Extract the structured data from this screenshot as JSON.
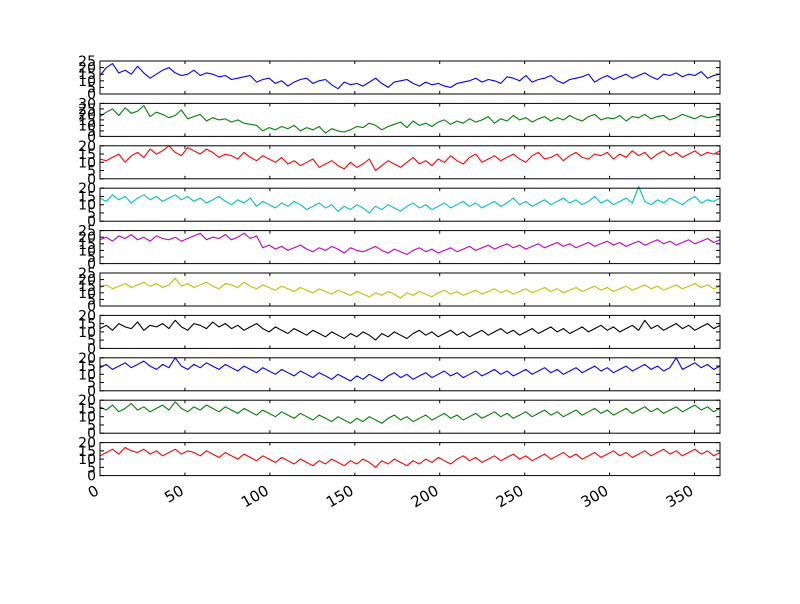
{
  "chart_data": {
    "type": "line",
    "layout": "stacked-subplots",
    "x_range": [
      0,
      365
    ],
    "x_ticks": [
      0,
      50,
      100,
      150,
      200,
      250,
      300,
      350
    ],
    "x_tick_rotation_deg": 30,
    "grid": false,
    "legend": "none",
    "panels": [
      {
        "color": "#0000ff",
        "ylim": [
          0,
          25
        ],
        "yticks": [
          0,
          5,
          10,
          15,
          20,
          25
        ],
        "values": [
          14,
          20,
          23,
          16,
          18,
          15,
          21,
          16,
          12,
          15,
          18,
          20,
          16,
          14,
          15,
          18,
          14,
          16,
          15,
          13,
          14,
          11,
          12,
          13,
          14,
          9,
          11,
          12,
          8,
          10,
          6,
          9,
          11,
          12,
          8,
          10,
          11,
          7,
          4,
          9,
          7,
          8,
          6,
          9,
          12,
          8,
          5,
          9,
          10,
          11,
          8,
          6,
          9,
          7,
          8,
          6,
          5,
          8,
          9,
          10,
          12,
          9,
          11,
          10,
          8,
          13,
          12,
          10,
          14,
          9,
          11,
          12,
          14,
          10,
          8,
          11,
          12,
          13,
          15,
          9,
          12,
          14,
          11,
          13,
          15,
          12,
          14,
          16,
          13,
          11,
          15,
          14,
          16,
          13,
          15,
          14,
          17,
          12,
          14,
          15
        ]
      },
      {
        "color": "#008000",
        "ylim": [
          0,
          30
        ],
        "yticks": [
          0,
          5,
          10,
          15,
          20,
          25,
          30
        ],
        "values": [
          18,
          22,
          25,
          19,
          26,
          21,
          23,
          28,
          18,
          22,
          20,
          17,
          19,
          24,
          16,
          18,
          20,
          14,
          17,
          15,
          16,
          13,
          15,
          12,
          11,
          10,
          5,
          8,
          6,
          9,
          7,
          10,
          5,
          8,
          6,
          9,
          3,
          7,
          5,
          4,
          6,
          9,
          8,
          12,
          10,
          6,
          9,
          11,
          13,
          8,
          14,
          10,
          12,
          9,
          13,
          15,
          11,
          14,
          12,
          16,
          13,
          15,
          18,
          12,
          16,
          14,
          19,
          15,
          17,
          13,
          16,
          18,
          14,
          17,
          15,
          19,
          16,
          14,
          18,
          20,
          15,
          17,
          16,
          19,
          14,
          18,
          17,
          20,
          16,
          18,
          19,
          15,
          17,
          20,
          18,
          16,
          19,
          17,
          18,
          19
        ]
      },
      {
        "color": "#ff0000",
        "ylim": [
          0,
          20
        ],
        "yticks": [
          0,
          5,
          10,
          15,
          20
        ],
        "values": [
          12,
          11,
          13,
          15,
          10,
          14,
          16,
          13,
          18,
          15,
          17,
          20,
          16,
          14,
          19,
          17,
          15,
          18,
          16,
          13,
          15,
          14,
          12,
          16,
          13,
          11,
          14,
          12,
          10,
          13,
          9,
          11,
          8,
          10,
          12,
          7,
          9,
          11,
          8,
          6,
          10,
          7,
          9,
          12,
          5,
          8,
          11,
          9,
          7,
          10,
          13,
          9,
          11,
          8,
          12,
          10,
          14,
          11,
          9,
          13,
          15,
          10,
          12,
          14,
          11,
          13,
          15,
          12,
          10,
          14,
          16,
          12,
          13,
          15,
          11,
          14,
          16,
          13,
          12,
          15,
          14,
          16,
          12,
          15,
          13,
          17,
          14,
          16,
          12,
          15,
          17,
          14,
          16,
          13,
          15,
          17,
          14,
          16,
          15,
          17
        ]
      },
      {
        "color": "#00bfbf",
        "ylim": [
          0,
          20
        ],
        "yticks": [
          0,
          5,
          10,
          15,
          20
        ],
        "values": [
          14,
          12,
          16,
          13,
          15,
          11,
          14,
          16,
          13,
          15,
          12,
          14,
          16,
          13,
          15,
          12,
          14,
          11,
          13,
          15,
          12,
          10,
          13,
          11,
          14,
          9,
          12,
          10,
          8,
          11,
          9,
          12,
          10,
          7,
          9,
          11,
          8,
          10,
          6,
          9,
          7,
          10,
          8,
          5,
          9,
          7,
          10,
          8,
          6,
          9,
          11,
          8,
          10,
          7,
          9,
          11,
          8,
          10,
          12,
          9,
          11,
          8,
          10,
          12,
          9,
          11,
          14,
          10,
          12,
          9,
          11,
          13,
          10,
          12,
          14,
          11,
          13,
          10,
          12,
          15,
          11,
          13,
          10,
          12,
          14,
          11,
          21,
          12,
          10,
          13,
          11,
          14,
          12,
          10,
          13,
          15,
          11,
          13,
          12,
          14
        ]
      },
      {
        "color": "#bf00bf",
        "ylim": [
          0,
          25
        ],
        "yticks": [
          0,
          5,
          10,
          15,
          20,
          25
        ],
        "values": [
          18,
          20,
          17,
          21,
          19,
          22,
          18,
          20,
          17,
          21,
          19,
          18,
          20,
          17,
          19,
          21,
          23,
          18,
          20,
          19,
          22,
          18,
          20,
          23,
          19,
          21,
          12,
          14,
          11,
          13,
          10,
          12,
          14,
          11,
          9,
          12,
          10,
          13,
          11,
          8,
          12,
          10,
          9,
          11,
          13,
          10,
          8,
          11,
          9,
          7,
          10,
          12,
          9,
          11,
          8,
          10,
          12,
          9,
          11,
          13,
          10,
          12,
          14,
          11,
          13,
          15,
          12,
          14,
          11,
          13,
          15,
          12,
          14,
          16,
          13,
          15,
          12,
          14,
          16,
          13,
          15,
          17,
          14,
          16,
          13,
          15,
          17,
          14,
          16,
          18,
          15,
          17,
          14,
          16,
          18,
          15,
          17,
          19,
          16,
          18
        ]
      },
      {
        "color": "#bfbf00",
        "ylim": [
          0,
          25
        ],
        "yticks": [
          0,
          5,
          10,
          15,
          20,
          25
        ],
        "values": [
          14,
          16,
          13,
          15,
          17,
          14,
          16,
          18,
          15,
          17,
          14,
          16,
          21,
          15,
          17,
          14,
          16,
          18,
          15,
          13,
          17,
          16,
          14,
          18,
          15,
          13,
          16,
          14,
          12,
          15,
          13,
          11,
          14,
          12,
          10,
          13,
          11,
          9,
          12,
          10,
          8,
          11,
          9,
          7,
          10,
          8,
          11,
          9,
          6,
          10,
          8,
          11,
          9,
          7,
          10,
          12,
          9,
          11,
          8,
          10,
          12,
          9,
          11,
          13,
          10,
          12,
          9,
          11,
          13,
          10,
          12,
          14,
          11,
          13,
          10,
          12,
          14,
          11,
          13,
          15,
          12,
          14,
          11,
          13,
          15,
          12,
          14,
          16,
          13,
          15,
          12,
          14,
          16,
          13,
          15,
          17,
          14,
          16,
          13,
          15
        ]
      },
      {
        "color": "#000000",
        "ylim": [
          0,
          20
        ],
        "yticks": [
          0,
          5,
          10,
          15,
          20
        ],
        "values": [
          12,
          14,
          11,
          15,
          13,
          12,
          16,
          11,
          14,
          13,
          15,
          12,
          17,
          13,
          11,
          15,
          14,
          12,
          16,
          13,
          15,
          12,
          14,
          11,
          13,
          15,
          12,
          10,
          13,
          11,
          9,
          12,
          10,
          8,
          11,
          9,
          7,
          10,
          8,
          6,
          9,
          7,
          10,
          8,
          5,
          9,
          7,
          10,
          8,
          6,
          9,
          11,
          8,
          10,
          7,
          9,
          11,
          8,
          10,
          7,
          9,
          11,
          8,
          10,
          12,
          9,
          11,
          8,
          10,
          12,
          9,
          11,
          13,
          10,
          12,
          9,
          11,
          13,
          10,
          12,
          14,
          11,
          13,
          10,
          12,
          14,
          11,
          17,
          12,
          14,
          11,
          13,
          15,
          12,
          14,
          11,
          13,
          15,
          12,
          14
        ]
      },
      {
        "color": "#0000ff",
        "ylim": [
          0,
          20
        ],
        "yticks": [
          0,
          5,
          10,
          15,
          20
        ],
        "values": [
          14,
          16,
          13,
          15,
          17,
          14,
          16,
          18,
          15,
          13,
          16,
          14,
          20,
          15,
          13,
          16,
          14,
          17,
          15,
          13,
          16,
          14,
          12,
          15,
          13,
          11,
          14,
          12,
          10,
          13,
          11,
          9,
          12,
          10,
          8,
          11,
          9,
          7,
          10,
          8,
          6,
          9,
          7,
          10,
          8,
          6,
          9,
          11,
          8,
          10,
          7,
          9,
          11,
          8,
          10,
          12,
          9,
          11,
          8,
          10,
          12,
          9,
          11,
          13,
          10,
          12,
          9,
          11,
          13,
          10,
          12,
          14,
          11,
          13,
          10,
          12,
          14,
          11,
          13,
          15,
          12,
          14,
          11,
          13,
          15,
          12,
          14,
          16,
          13,
          15,
          12,
          14,
          20,
          13,
          15,
          17,
          14,
          16,
          13,
          15
        ]
      },
      {
        "color": "#008000",
        "ylim": [
          0,
          20
        ],
        "yticks": [
          0,
          5,
          10,
          15,
          20
        ],
        "values": [
          16,
          14,
          17,
          13,
          15,
          18,
          14,
          16,
          13,
          15,
          17,
          14,
          19,
          15,
          13,
          16,
          14,
          17,
          15,
          13,
          16,
          14,
          12,
          15,
          13,
          11,
          14,
          12,
          10,
          13,
          11,
          9,
          12,
          10,
          8,
          11,
          9,
          7,
          10,
          8,
          6,
          9,
          7,
          10,
          8,
          6,
          9,
          11,
          8,
          10,
          7,
          9,
          11,
          8,
          10,
          12,
          9,
          11,
          8,
          10,
          12,
          9,
          11,
          13,
          10,
          12,
          9,
          11,
          13,
          10,
          12,
          14,
          11,
          13,
          10,
          12,
          14,
          11,
          13,
          15,
          12,
          14,
          11,
          13,
          15,
          12,
          14,
          16,
          13,
          15,
          12,
          14,
          16,
          13,
          15,
          17,
          14,
          16,
          13,
          15
        ]
      },
      {
        "color": "#ff0000",
        "ylim": [
          0,
          20
        ],
        "yticks": [
          0,
          5,
          10,
          15,
          20
        ],
        "values": [
          12,
          14,
          16,
          13,
          17,
          15,
          14,
          16,
          13,
          15,
          12,
          14,
          16,
          13,
          15,
          14,
          12,
          15,
          13,
          11,
          14,
          12,
          10,
          13,
          11,
          9,
          12,
          10,
          8,
          11,
          9,
          7,
          10,
          8,
          6,
          9,
          7,
          10,
          8,
          6,
          9,
          7,
          10,
          8,
          5,
          9,
          7,
          10,
          8,
          6,
          9,
          7,
          10,
          8,
          11,
          9,
          7,
          10,
          12,
          9,
          11,
          8,
          10,
          12,
          9,
          11,
          13,
          10,
          12,
          9,
          11,
          13,
          10,
          12,
          14,
          11,
          13,
          10,
          12,
          14,
          11,
          13,
          15,
          12,
          14,
          11,
          13,
          15,
          12,
          14,
          16,
          13,
          15,
          12,
          14,
          16,
          13,
          15,
          12,
          14
        ]
      }
    ]
  }
}
